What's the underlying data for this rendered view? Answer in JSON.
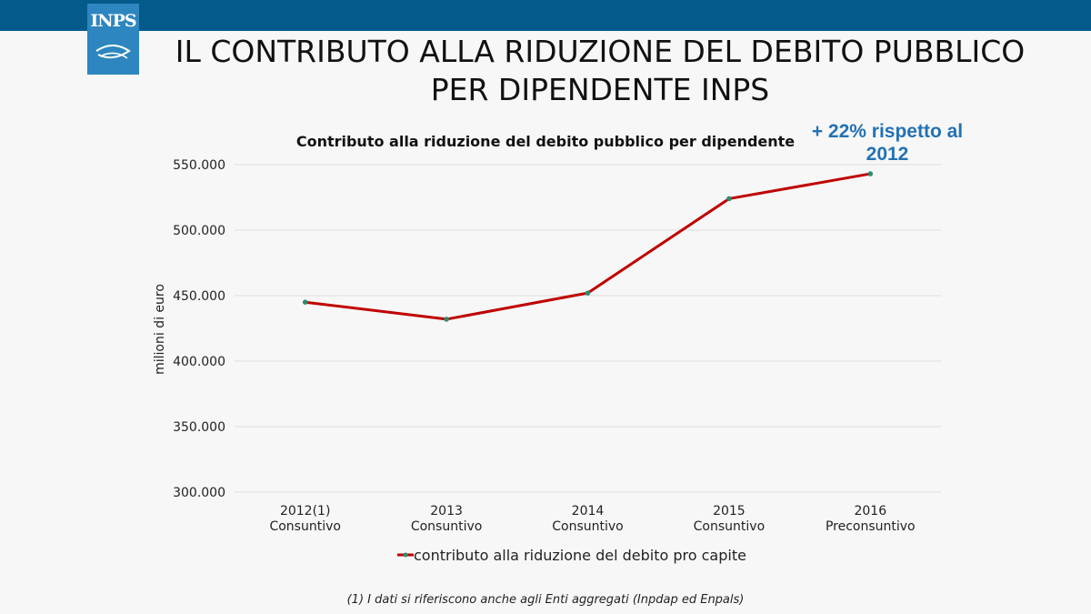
{
  "header": {
    "logo_text": "INPS",
    "title": "IL CONTRIBUTO ALLA RIDUZIONE DEL DEBITO PUBBLICO PER DIPENDENTE INPS"
  },
  "annotation": "+ 22% rispetto al 2012",
  "footnote": "(1) I dati si riferiscono anche agli Enti aggregati (Inpdap ed Enpals)",
  "colors": {
    "top_bar": "#035a8b",
    "logo_bg": "#2d86bf",
    "line": "#c00000",
    "marker": "#2e8b6e",
    "annotation": "#2272b4"
  },
  "chart_data": {
    "type": "line",
    "title": "Contributo alla riduzione del debito pubblico per dipendente",
    "ylabel": "milioni di euro",
    "xlabel": "",
    "categories": [
      [
        "2012(1)",
        "Consuntivo"
      ],
      [
        "2013",
        "Consuntivo"
      ],
      [
        "2014",
        "Consuntivo"
      ],
      [
        "2015",
        "Consuntivo"
      ],
      [
        "2016",
        "Preconsuntivo"
      ]
    ],
    "series": [
      {
        "name": "contributo alla riduzione del debito pro capite",
        "values": [
          445000,
          432000,
          452000,
          524000,
          543000
        ]
      }
    ],
    "ylim": [
      300000,
      550000
    ],
    "yticks": [
      300000,
      350000,
      400000,
      450000,
      500000,
      550000
    ],
    "ytick_labels": [
      "300.000",
      "350.000",
      "400.000",
      "450.000",
      "500.000",
      "550.000"
    ],
    "grid": true,
    "legend_position": "bottom"
  }
}
